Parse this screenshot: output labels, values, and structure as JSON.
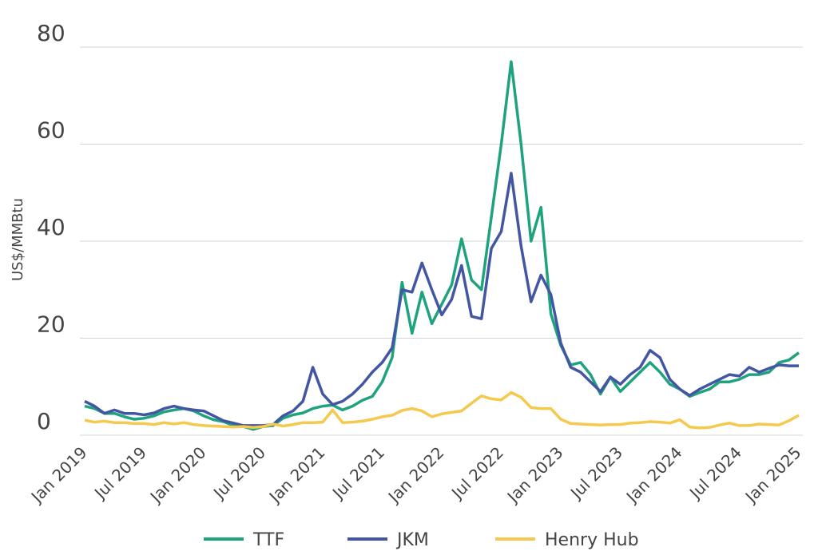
{
  "chart_data": {
    "type": "line",
    "y_label": "US$/MMBtu",
    "categories": [
      "Jan 2019",
      null,
      null,
      null,
      null,
      null,
      "Jul 2019",
      null,
      null,
      null,
      null,
      null,
      "Jan 2020",
      null,
      null,
      null,
      null,
      null,
      "Jul 2020",
      null,
      null,
      null,
      null,
      null,
      "Jan 2021",
      null,
      null,
      null,
      null,
      null,
      "Jul 2021",
      null,
      null,
      null,
      null,
      null,
      "Jan 2022",
      null,
      null,
      null,
      null,
      null,
      "Jul 2022",
      null,
      null,
      null,
      null,
      null,
      "Jan 2023",
      null,
      null,
      null,
      null,
      null,
      "Jul 2023",
      null,
      null,
      null,
      null,
      null,
      "Jan 2024",
      null,
      null,
      null,
      null,
      null,
      "Jul 2024",
      null,
      null,
      null,
      null,
      null,
      "Jan 2025"
    ],
    "series": [
      {
        "name": "TTF",
        "color": "#1fa37f",
        "values": [
          6.0,
          5.5,
          4.5,
          4.5,
          3.8,
          3.3,
          3.5,
          4.0,
          4.8,
          5.2,
          5.5,
          5.0,
          4.0,
          3.2,
          2.8,
          2.0,
          1.8,
          1.2,
          1.8,
          2.0,
          3.5,
          4.2,
          4.6,
          5.5,
          6.0,
          6.2,
          5.2,
          6.0,
          7.2,
          8.0,
          11,
          16,
          31.5,
          21,
          29.5,
          23,
          27,
          31,
          40.5,
          32,
          30,
          45,
          60,
          77,
          60,
          40,
          47,
          25,
          18.5,
          14.5,
          15,
          12.5,
          8.5,
          12,
          9,
          11,
          13,
          15,
          13,
          10.5,
          9.5,
          8,
          8.8,
          9.5,
          11,
          11,
          11.5,
          12.5,
          12.5,
          13,
          15,
          15.5,
          17
        ]
      },
      {
        "name": "JKM",
        "color": "#4356a3",
        "values": [
          7.0,
          6.0,
          4.5,
          5.2,
          4.5,
          4.5,
          4.2,
          4.6,
          5.5,
          6.0,
          5.5,
          5.2,
          5.0,
          4.0,
          3.0,
          2.5,
          2.0,
          2.0,
          2.0,
          2.2,
          4.0,
          5.0,
          7.0,
          14.0,
          8.5,
          6.3,
          7.0,
          8.5,
          10.5,
          13,
          15,
          18,
          30,
          29.5,
          35.5,
          30,
          24.8,
          28,
          35,
          24.5,
          24,
          38.5,
          42,
          54,
          39,
          27.5,
          33,
          29,
          19,
          14,
          13,
          11,
          9,
          12,
          10.5,
          12.5,
          14,
          17.5,
          16,
          11.5,
          9.5,
          8.2,
          9.5,
          10.5,
          11.5,
          12.5,
          12.2,
          14,
          13,
          13.8,
          14.5,
          14.3,
          14.3
        ]
      },
      {
        "name": "Henry Hub",
        "color": "#f5c94e",
        "values": [
          3.1,
          2.7,
          2.9,
          2.6,
          2.6,
          2.4,
          2.4,
          2.2,
          2.6,
          2.3,
          2.6,
          2.2,
          2.0,
          1.9,
          1.8,
          1.7,
          1.8,
          1.6,
          1.8,
          2.3,
          1.9,
          2.2,
          2.6,
          2.6,
          2.7,
          5.2,
          2.6,
          2.7,
          2.9,
          3.3,
          3.8,
          4.1,
          5.1,
          5.5,
          5.0,
          3.8,
          4.4,
          4.7,
          5.0,
          6.6,
          8.1,
          7.5,
          7.3,
          8.8,
          7.8,
          5.7,
          5.5,
          5.5,
          3.3,
          2.4,
          2.3,
          2.2,
          2.1,
          2.2,
          2.2,
          2.5,
          2.6,
          2.8,
          2.7,
          2.5,
          3.2,
          1.7,
          1.5,
          1.6,
          2.1,
          2.5,
          2.0,
          2.0,
          2.3,
          2.2,
          2.1,
          3.0,
          4.1
        ]
      }
    ],
    "ylim": [
      0,
      80
    ],
    "yticks": [
      0,
      20,
      40,
      60,
      80
    ],
    "grid": true
  }
}
